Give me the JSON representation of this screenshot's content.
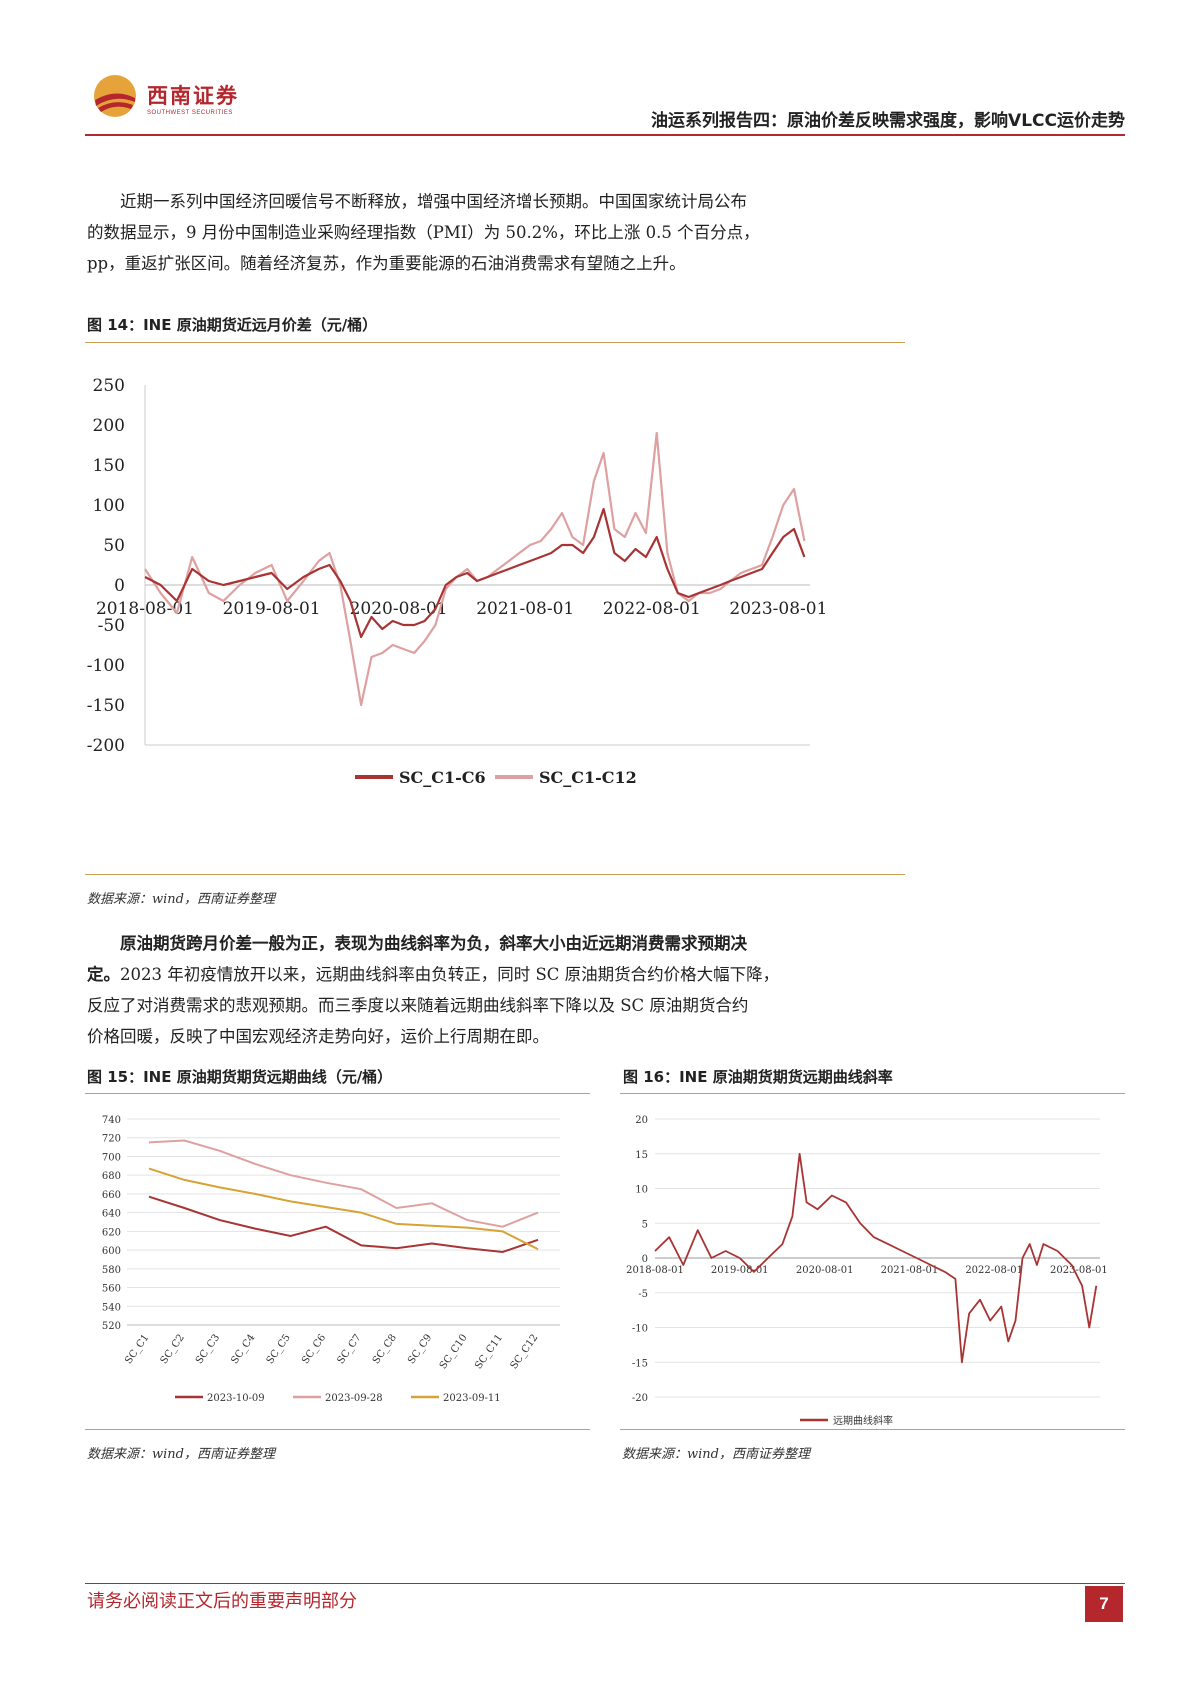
{
  "header": {
    "logo_cn": "西南证券",
    "logo_en": "SOUTHWEST SECURITIES",
    "report_title": "油运系列报告四：原油价差反映需求强度，影响VLCC运价走势"
  },
  "para1": [
    "近期一系列中国经济回暖信号不断释放，增强中国经济增长预期。中国国家统计局公布",
    "的数据显示，9 月份中国制造业采购经理指数（PMI）为 50.2%，环比上涨 0.5 个百分点，",
    "pp，重返扩张区间。随着经济复苏，作为重要能源的石油消费需求有望随之上升。"
  ],
  "fig14": {
    "title": "图 14：INE 原油期货近远月价差（元/桶）",
    "source": "数据来源：wind，西南证券整理"
  },
  "para2": {
    "bold1": "原油期货跨月价差一般为正，表现为曲线斜率为负，斜率大小由近远期消费需求预期决",
    "bold2": "定。",
    "rest2": "2023 年初疫情放开以来，远期曲线斜率由负转正，同时 SC 原油期货合约价格大幅下降，",
    "line3": "反应了对消费需求的悲观预期。而三季度以来随着远期曲线斜率下降以及 SC 原油期货合约",
    "line4": "价格回暖，反映了中国宏观经济走势向好，运价上行周期在即。"
  },
  "fig15": {
    "title": "图 15：INE 原油期货期货远期曲线（元/桶）",
    "source": "数据来源：wind，西南证券整理"
  },
  "fig16": {
    "title": "图 16：INE 原油期货期货远期曲线斜率",
    "source": "数据来源：wind，西南证券整理"
  },
  "footer": {
    "note": "请务必阅读正文后的重要声明部分",
    "page": "7"
  },
  "colors": {
    "dark_red": "#a83434",
    "light_red": "#dea0a0",
    "gold": "#d7a236",
    "brand": "#b3272d"
  },
  "chart_data": [
    {
      "type": "line",
      "ylim": [
        -200,
        250
      ],
      "y_ticks": [
        250,
        200,
        150,
        100,
        50,
        0,
        -50,
        -100,
        -150,
        -200
      ],
      "x_tick_labels": [
        "2018-08-01",
        "2019-08-01",
        "2020-08-01",
        "2021-08-01",
        "2022-08-01",
        "2023-08-01"
      ],
      "x_range": [
        "2018-08-01",
        "2023-10-31"
      ],
      "grid": false,
      "legend_position": "bottom",
      "series": [
        {
          "name": "SC_C1-C6",
          "color": "#a83434",
          "x": [
            "2018-08-01",
            "2018-09-15",
            "2018-11-01",
            "2018-12-15",
            "2019-02-01",
            "2019-03-15",
            "2019-05-01",
            "2019-06-15",
            "2019-08-01",
            "2019-09-15",
            "2019-11-01",
            "2019-12-15",
            "2020-01-15",
            "2020-02-15",
            "2020-03-15",
            "2020-04-15",
            "2020-05-15",
            "2020-06-15",
            "2020-07-15",
            "2020-08-15",
            "2020-09-15",
            "2020-10-15",
            "2020-11-15",
            "2020-12-15",
            "2021-01-15",
            "2021-02-15",
            "2021-03-15",
            "2021-04-15",
            "2021-05-15",
            "2021-06-15",
            "2021-07-15",
            "2021-08-15",
            "2021-09-15",
            "2021-10-15",
            "2021-11-15",
            "2021-12-15",
            "2022-01-15",
            "2022-02-15",
            "2022-03-15",
            "2022-04-15",
            "2022-05-15",
            "2022-06-15",
            "2022-07-15",
            "2022-08-15",
            "2022-09-15",
            "2022-10-15",
            "2022-11-15",
            "2022-12-15",
            "2023-01-15",
            "2023-02-15",
            "2023-03-15",
            "2023-04-15",
            "2023-05-15",
            "2023-06-15",
            "2023-07-15",
            "2023-08-15",
            "2023-09-15",
            "2023-10-15"
          ],
          "y": [
            10,
            0,
            -20,
            20,
            5,
            0,
            5,
            10,
            15,
            -5,
            10,
            20,
            25,
            5,
            -20,
            -65,
            -40,
            -55,
            -45,
            -50,
            -50,
            -45,
            -30,
            0,
            10,
            15,
            5,
            10,
            15,
            20,
            25,
            30,
            35,
            40,
            50,
            50,
            40,
            60,
            95,
            40,
            30,
            45,
            35,
            60,
            20,
            -10,
            -15,
            -10,
            -5,
            0,
            5,
            10,
            15,
            20,
            40,
            60,
            70,
            35
          ]
        },
        {
          "name": "SC_C1-C12",
          "color": "#dea0a0",
          "x": [
            "2018-08-01",
            "2018-09-15",
            "2018-11-01",
            "2018-12-15",
            "2019-02-01",
            "2019-03-15",
            "2019-05-01",
            "2019-06-15",
            "2019-08-01",
            "2019-09-15",
            "2019-11-01",
            "2019-12-15",
            "2020-01-15",
            "2020-02-15",
            "2020-03-15",
            "2020-04-15",
            "2020-05-15",
            "2020-06-15",
            "2020-07-15",
            "2020-08-15",
            "2020-09-15",
            "2020-10-15",
            "2020-11-15",
            "2020-12-15",
            "2021-01-15",
            "2021-02-15",
            "2021-03-15",
            "2021-04-15",
            "2021-05-15",
            "2021-06-15",
            "2021-07-15",
            "2021-08-15",
            "2021-09-15",
            "2021-10-15",
            "2021-11-15",
            "2021-12-15",
            "2022-01-15",
            "2022-02-15",
            "2022-03-15",
            "2022-04-15",
            "2022-05-15",
            "2022-06-15",
            "2022-07-15",
            "2022-08-15",
            "2022-09-15",
            "2022-10-15",
            "2022-11-15",
            "2022-12-15",
            "2023-01-15",
            "2023-02-15",
            "2023-03-15",
            "2023-04-15",
            "2023-05-15",
            "2023-06-15",
            "2023-07-15",
            "2023-08-15",
            "2023-09-15",
            "2023-10-15"
          ],
          "y": [
            20,
            -10,
            -35,
            35,
            -10,
            -20,
            0,
            15,
            25,
            -20,
            5,
            30,
            40,
            0,
            -70,
            -150,
            -90,
            -85,
            -75,
            -80,
            -85,
            -70,
            -50,
            -5,
            10,
            20,
            5,
            10,
            20,
            30,
            40,
            50,
            55,
            70,
            90,
            60,
            50,
            130,
            165,
            70,
            60,
            90,
            65,
            190,
            40,
            -10,
            -20,
            -10,
            -10,
            -5,
            5,
            15,
            20,
            25,
            60,
            100,
            120,
            55
          ]
        }
      ]
    },
    {
      "type": "line",
      "categories": [
        "SC_C1",
        "SC_C2",
        "SC_C3",
        "SC_C4",
        "SC_C5",
        "SC_C6",
        "SC_C7",
        "SC_C8",
        "SC_C9",
        "SC_C10",
        "SC_C11",
        "SC_C12"
      ],
      "ylim": [
        520,
        740
      ],
      "y_ticks": [
        740,
        720,
        700,
        680,
        660,
        640,
        620,
        600,
        580,
        560,
        540,
        520
      ],
      "grid": true,
      "legend_position": "bottom",
      "series": [
        {
          "name": "2023-10-09",
          "color": "#a83434",
          "values": [
            657,
            645,
            632,
            623,
            615,
            625,
            605,
            602,
            607,
            602,
            598,
            611
          ]
        },
        {
          "name": "2023-09-28",
          "color": "#dea0a0",
          "values": [
            715,
            717,
            706,
            692,
            680,
            672,
            665,
            645,
            650,
            632,
            625,
            640
          ]
        },
        {
          "name": "2023-09-11",
          "color": "#d7a236",
          "values": [
            687,
            675,
            667,
            660,
            652,
            646,
            640,
            628,
            626,
            624,
            620,
            601
          ]
        }
      ]
    },
    {
      "type": "line",
      "ylim": [
        -20,
        20
      ],
      "y_ticks": [
        20,
        15,
        10,
        5,
        0,
        -5,
        -10,
        -15,
        -20
      ],
      "x_tick_labels": [
        "2018-08-01",
        "2019-08-01",
        "2020-08-01",
        "2021-08-01",
        "2022-08-01",
        "2023-08-01"
      ],
      "x_range": [
        "2018-08-01",
        "2023-10-31"
      ],
      "grid": true,
      "legend_position": "bottom",
      "series": [
        {
          "name": "远期曲线斜率",
          "color": "#a83434",
          "x": [
            "2018-08-01",
            "2018-10-01",
            "2018-12-01",
            "2019-02-01",
            "2019-04-01",
            "2019-06-01",
            "2019-08-01",
            "2019-10-01",
            "2019-12-01",
            "2020-02-01",
            "2020-03-15",
            "2020-04-15",
            "2020-05-15",
            "2020-07-01",
            "2020-09-01",
            "2020-11-01",
            "2021-01-01",
            "2021-03-01",
            "2021-05-01",
            "2021-07-01",
            "2021-09-01",
            "2021-11-01",
            "2022-01-01",
            "2022-02-15",
            "2022-03-15",
            "2022-04-15",
            "2022-06-01",
            "2022-07-15",
            "2022-09-01",
            "2022-10-01",
            "2022-11-01",
            "2022-12-01",
            "2023-01-01",
            "2023-02-01",
            "2023-03-01",
            "2023-05-01",
            "2023-07-01",
            "2023-08-15",
            "2023-09-15",
            "2023-10-15"
          ],
          "y": [
            1,
            3,
            -1,
            4,
            0,
            1,
            0,
            -2,
            0,
            2,
            6,
            15,
            8,
            7,
            9,
            8,
            5,
            3,
            2,
            1,
            0,
            -1,
            -2,
            -3,
            -15,
            -8,
            -6,
            -9,
            -7,
            -12,
            -9,
            0,
            2,
            -1,
            2,
            1,
            -1,
            -4,
            -10,
            -4
          ]
        }
      ]
    }
  ]
}
